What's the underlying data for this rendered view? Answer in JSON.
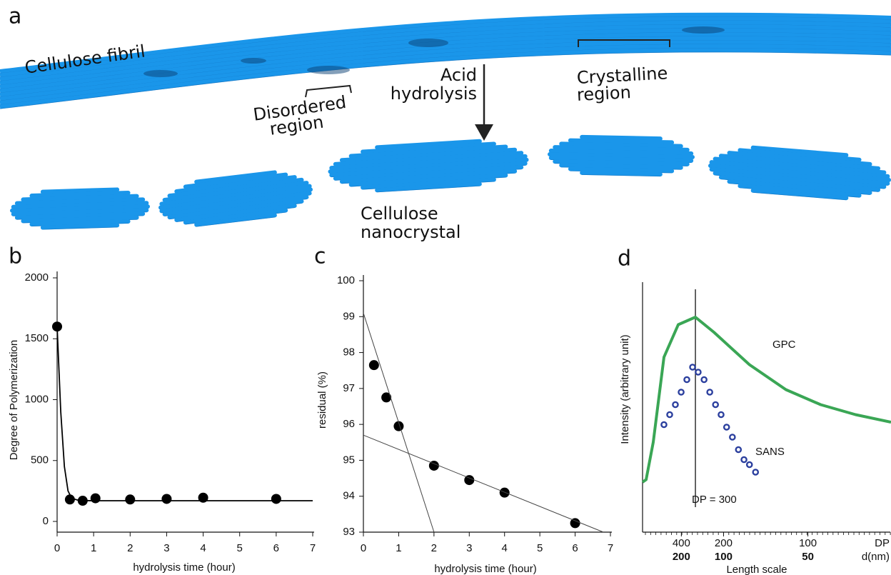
{
  "figure": {
    "panel_letters": [
      "a",
      "b",
      "c",
      "d"
    ],
    "labels": {
      "fibril": "Cellulose fibril",
      "disordered": [
        "Disordered",
        "region"
      ],
      "acid": [
        "Acid",
        "hydrolysis"
      ],
      "crystalline": [
        "Crystalline",
        "region"
      ],
      "nanocrystal": [
        "Cellulose",
        "nanocrystal"
      ]
    }
  },
  "chart_data": [
    {
      "type": "scatter",
      "xlabel": "hydrolysis time (hour)",
      "ylabel": "Degree of Polymerization",
      "xlim": [
        0,
        7
      ],
      "ylim": [
        0,
        2000
      ],
      "xticks": [
        0,
        1,
        2,
        3,
        4,
        5,
        6,
        7
      ],
      "yticks": [
        0,
        500,
        1000,
        1500,
        2000
      ],
      "grid": false,
      "series": [
        {
          "mode": "markers",
          "color": "#000000",
          "x": [
            0,
            0.35,
            0.7,
            1.05,
            2,
            3,
            4,
            6
          ],
          "values": [
            1600,
            180,
            170,
            190,
            180,
            185,
            195,
            185
          ]
        },
        {
          "mode": "line",
          "color": "#000000",
          "x": [
            0,
            0.1,
            0.2,
            0.3,
            0.4,
            0.6,
            1,
            2,
            3,
            4,
            5,
            6,
            7
          ],
          "values": [
            1600,
            900,
            450,
            250,
            190,
            172,
            170,
            170,
            170,
            170,
            170,
            170,
            170
          ]
        }
      ]
    },
    {
      "type": "scatter",
      "xlabel": "hydrolysis time (hour)",
      "ylabel": "residual (%)",
      "xlim": [
        0,
        7
      ],
      "ylim": [
        93,
        100
      ],
      "xticks": [
        0,
        1,
        2,
        3,
        4,
        5,
        6,
        7
      ],
      "yticks": [
        93,
        94,
        95,
        96,
        97,
        98,
        99,
        100
      ],
      "grid": false,
      "series": [
        {
          "mode": "markers",
          "color": "#000000",
          "x": [
            0.3,
            0.65,
            1,
            2,
            3,
            4,
            6
          ],
          "values": [
            97.65,
            96.75,
            95.95,
            94.85,
            94.45,
            94.1,
            93.25
          ]
        },
        {
          "mode": "line",
          "color": "#444444",
          "x": [
            0,
            2
          ],
          "values": [
            99.1,
            93
          ]
        },
        {
          "mode": "line",
          "color": "#444444",
          "x": [
            0,
            6.8
          ],
          "values": [
            95.7,
            93
          ]
        }
      ]
    },
    {
      "type": "line",
      "xlabel": "Length scale",
      "ylabel": "Intensity (arbitrary unit)",
      "xscale": "reciprocal",
      "xlim": [
        5000,
        67
      ],
      "ylim": [
        0,
        1
      ],
      "grid": false,
      "xticks": [
        400,
        200,
        100
      ],
      "x2ticks": [
        {
          "value": 400,
          "label": "200"
        },
        {
          "value": 200,
          "label": "100"
        },
        {
          "value": 100,
          "label": "50"
        }
      ],
      "x_row_labels": [
        "DP",
        "d(nm)"
      ],
      "annotations": [
        {
          "text": "DP = 300",
          "x": 300
        }
      ],
      "series": [
        {
          "name": "GPC",
          "mode": "line",
          "color": "#3aa655",
          "x": [
            5000,
            2430,
            1198,
            680,
            432,
            300,
            226,
            153,
            115,
            93,
            78,
            67
          ],
          "values": [
            0.2,
            0.21,
            0.36,
            0.7,
            0.83,
            0.86,
            0.8,
            0.67,
            0.57,
            0.51,
            0.47,
            0.44
          ]
        },
        {
          "name": "SANS",
          "mode": "open-circles",
          "color": "#2b3f9e",
          "x": [
            681,
            553,
            466,
            402,
            354,
            316,
            286,
            260,
            239,
            221,
            206,
            193,
            181,
            170,
            161,
            153,
            145
          ],
          "values": [
            0.43,
            0.47,
            0.51,
            0.56,
            0.61,
            0.66,
            0.64,
            0.61,
            0.56,
            0.51,
            0.47,
            0.42,
            0.38,
            0.33,
            0.29,
            0.27,
            0.24
          ]
        }
      ]
    }
  ]
}
